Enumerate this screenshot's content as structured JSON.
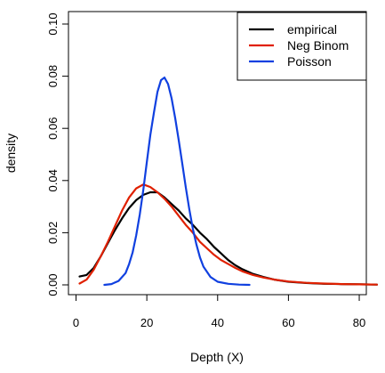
{
  "chart_data": {
    "type": "line",
    "title": "",
    "xlabel": "Depth (X)",
    "ylabel": "density",
    "xlim": [
      0,
      82
    ],
    "ylim": [
      0,
      0.1
    ],
    "x_ticks": [
      0,
      20,
      40,
      60,
      80
    ],
    "y_ticks": [
      0.0,
      0.02,
      0.04,
      0.06,
      0.08,
      0.1
    ],
    "y_tick_labels": [
      "0.00",
      "0.02",
      "0.04",
      "0.06",
      "0.08",
      "0.10"
    ],
    "grid": false,
    "legend_position": "top-right",
    "series": [
      {
        "name": "empirical",
        "color": "#000000",
        "x": [
          1,
          3,
          5,
          7,
          9,
          11,
          13,
          15,
          17,
          19,
          21,
          23,
          25,
          27,
          29,
          31,
          33,
          35,
          37,
          39,
          41,
          43,
          45,
          47,
          50,
          53,
          56,
          60,
          65,
          70,
          75,
          80,
          85
        ],
        "y": [
          0.0032,
          0.0038,
          0.0065,
          0.011,
          0.016,
          0.021,
          0.0255,
          0.0295,
          0.0325,
          0.0345,
          0.0355,
          0.0355,
          0.0335,
          0.031,
          0.0285,
          0.0255,
          0.023,
          0.02,
          0.0175,
          0.0145,
          0.012,
          0.0095,
          0.0075,
          0.006,
          0.0042,
          0.003,
          0.002,
          0.0012,
          0.0007,
          0.0004,
          0.0003,
          0.0002,
          0.0001
        ]
      },
      {
        "name": "Neg Binom",
        "color": "#e02000",
        "x": [
          1,
          3,
          5,
          7,
          9,
          11,
          13,
          15,
          17,
          19,
          21,
          23,
          25,
          27,
          29,
          31,
          33,
          35,
          37,
          39,
          41,
          43,
          45,
          47,
          50,
          53,
          56,
          60,
          65,
          70,
          75,
          80,
          85
        ],
        "y": [
          0.0005,
          0.002,
          0.0058,
          0.011,
          0.0165,
          0.0225,
          0.0285,
          0.0335,
          0.037,
          0.0385,
          0.0375,
          0.0355,
          0.033,
          0.03,
          0.0265,
          0.023,
          0.02,
          0.0165,
          0.014,
          0.0115,
          0.0095,
          0.008,
          0.0065,
          0.0052,
          0.0038,
          0.0028,
          0.002,
          0.0013,
          0.0008,
          0.0005,
          0.0003,
          0.0002,
          0.0001
        ]
      },
      {
        "name": "Poisson",
        "color": "#1040e0",
        "x": [
          8,
          10,
          12,
          14,
          15,
          16,
          17,
          18,
          19,
          20,
          21,
          22,
          23,
          24,
          25,
          26,
          27,
          28,
          29,
          30,
          31,
          32,
          33,
          34,
          35,
          36,
          38,
          40,
          43,
          46,
          49
        ],
        "y": [
          0.0,
          0.0003,
          0.0015,
          0.0045,
          0.008,
          0.0125,
          0.019,
          0.027,
          0.0365,
          0.047,
          0.0575,
          0.066,
          0.074,
          0.0785,
          0.0795,
          0.077,
          0.0715,
          0.064,
          0.0555,
          0.0465,
          0.0375,
          0.029,
          0.0215,
          0.0155,
          0.0105,
          0.007,
          0.003,
          0.0012,
          0.0004,
          0.0001,
          0.0
        ]
      }
    ]
  }
}
